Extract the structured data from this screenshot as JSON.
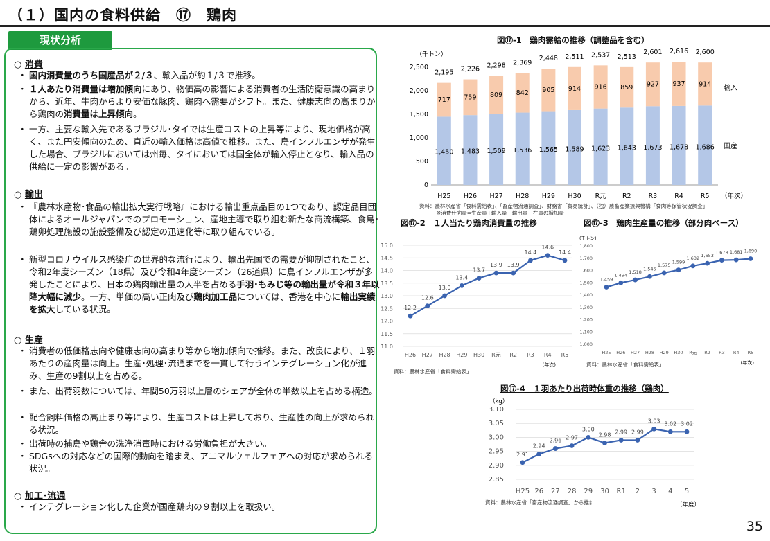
{
  "page": {
    "title": "（１）国内の食料供給　⑰　鶏肉",
    "status_tab": "現状分析",
    "page_number": "35"
  },
  "left": {
    "consumption": {
      "heading": "消費",
      "b1": {
        "pre": "",
        "bold": "国内消費量のうち国産品が２/３",
        "post": "、輸入品が約１/３で推移。"
      },
      "b2": {
        "bold1": "１人あたり消費量は増加傾向",
        "mid": "にあり、物価高の影響による消費者の生活防衛意識の高まりから、近年、牛肉からより安価な豚肉、鶏肉へ需要がシフト。また、健康志向の高まりから鶏肉の",
        "bold2": "消費量は上昇傾向",
        "post": "。"
      },
      "b3": "一方、主要な輸入先であるブラジル･タイでは生産コストの上昇等により、現地価格が高く、また円安傾向のため、直近の輸入価格は高値で推移。また、鳥インフルエンザが発生した場合、ブラジルにおいては州毎、タイにおいては国全体が輸入停止となり、輸入品の供給に一定の影響がある。"
    },
    "export": {
      "heading": "輸出",
      "b1": "『農林水産物･食品の輸出拡大実行戦略』における輸出重点品目の1つであり、認定品目団体によるオールジャパンでのプロモーション、産地主導で取り組む新たな商流構築、食鳥･鶏卵処理施設の施設整備及び認定の迅速化等に取り組んでいる。",
      "b2": {
        "pre": "新型コロナウイルス感染症の世界的な流行により、輸出先国での需要が抑制されたこと、令和2年度シーズン（18県）及び令和4年度シーズン（26道県）に鳥インフルエンザが多発したことにより、日本の鶏肉輸出量の大半を占める",
        "bold1": "手羽･もみじ等の輸出量が令和３年以降大幅に減少",
        "mid1": "。一方、単価の高い正肉及び",
        "bold2": "鶏肉加工品",
        "mid2": "については、香港を中心に",
        "bold3": "輸出実績を拡大",
        "post": "している状況。"
      }
    },
    "production": {
      "heading": "生産",
      "b1": "消費者の低価格志向や健康志向の高まり等から増加傾向で推移。また、改良により、１羽あたりの産肉量は向上。生産･処理･流通までを一貫して行うインテグレーション化が進み、生産の9割以上を占める。",
      "b2": "また、出荷羽数については、年間50万羽以上層のシェアが全体の半数以上を占める構造。",
      "b3": "配合飼料価格の高止まり等により、生産コストは上昇しており、生産性の向上が求められる状況。",
      "b4": "出荷時の捕鳥や鶏舎の洗浄消毒時における労働負担が大きい。",
      "b5": "SDGsへの対応などの国際的動向を踏まえ、アニマルウェルフェアへの対応が求められる状況。"
    },
    "processing": {
      "heading": "加工･流通",
      "b1": "インテグレーション化した企業が国産鶏肉の９割以上を取扱い。"
    }
  },
  "charts_text": {
    "c1_source": "資料：農林水産省「食料需給表」、「畜産物流通調査」、財務省「貿易統計」、（独）農畜産業振興機構「食肉等保管状況調査」",
    "c1_note": "※消費仕向量=生産量+輸入量－輸出量－在庫の増加量",
    "c2_source": "資料：農林水産省「食料需給表」",
    "c3_source": "資料：農林水産省「食料需給表」",
    "c4_source": "資料：農林水産省「畜産物流通調査」から推計"
  },
  "chart_data": [
    {
      "id": "c1",
      "type": "bar",
      "title": "図⑰-1　鶏肉需給の推移（調整品を含む）",
      "ylabel": "（千トン）",
      "xlabel_suffix": "（年次）",
      "categories": [
        "H25",
        "H26",
        "H27",
        "H28",
        "H29",
        "H30",
        "R元",
        "R2",
        "R3",
        "R4",
        "R5"
      ],
      "series": [
        {
          "name": "国産",
          "color": "#b4c7e7",
          "values": [
            1450,
            1483,
            1509,
            1536,
            1565,
            1589,
            1623,
            1643,
            1673,
            1678,
            1686
          ],
          "labels": [
            "1,450",
            "1,483",
            "1,509",
            "1,536",
            "1,565",
            "1,589",
            "1,623",
            "1,643",
            "1,673",
            "1,678",
            "1,686"
          ]
        },
        {
          "name": "輸入",
          "color": "#f8cbad",
          "values": [
            717,
            759,
            809,
            842,
            905,
            914,
            916,
            859,
            927,
            937,
            914
          ],
          "labels": [
            "717",
            "759",
            "809",
            "842",
            "905",
            "914",
            "916",
            "859",
            "927",
            "937",
            "914"
          ]
        }
      ],
      "totals": [
        "2,195",
        "2,226",
        "2,298",
        "2,369",
        "2,448",
        "2,511",
        "2,537",
        "2,513",
        "2,601",
        "2,616",
        "2,600"
      ],
      "yticks": [
        "0",
        "500",
        "1,000",
        "1,500",
        "2,000",
        "2,500"
      ],
      "ylim": [
        0,
        2500
      ]
    },
    {
      "id": "c2",
      "type": "line",
      "title": "図⑰-2　１人当たり鶏肉消費量の推移",
      "xlabel_suffix": "(年次)",
      "categories": [
        "H26",
        "H27",
        "H28",
        "H29",
        "H30",
        "R元",
        "R2",
        "R3",
        "R4",
        "R5"
      ],
      "values": [
        12.2,
        12.6,
        13.0,
        13.4,
        13.7,
        13.9,
        13.9,
        14.4,
        14.6,
        14.4
      ],
      "labels": [
        "12.2",
        "12.6",
        "13.0",
        "13.4",
        "13.7",
        "13.9",
        "13.9",
        "14.4",
        "14.6",
        "14.4"
      ],
      "yticks": [
        "11.0",
        "11.5",
        "12.0",
        "12.5",
        "13.0",
        "13.5",
        "14.0",
        "14.5",
        "15.0"
      ],
      "ylim": [
        11.0,
        15.0
      ],
      "color": "#3a63b0"
    },
    {
      "id": "c3",
      "type": "line",
      "title": "図⑰-3　鶏肉生産量の推移（部分肉ベース）",
      "ylabel": "(千トン)",
      "xlabel_suffix": "(年次)",
      "categories": [
        "H25",
        "H26",
        "H27",
        "H28",
        "H29",
        "H30",
        "R元",
        "R2",
        "R3",
        "R4",
        "R5"
      ],
      "values": [
        1459,
        1494,
        1518,
        1545,
        1575,
        1599,
        1632,
        1653,
        1678,
        1681,
        1690
      ],
      "labels": [
        "1,459",
        "1,494",
        "1,518",
        "1,545",
        "1,575",
        "1,599",
        "1,632",
        "1,653",
        "1,678",
        "1,681",
        "1,690"
      ],
      "yticks": [
        "1,000",
        "1,100",
        "1,200",
        "1,300",
        "1,400",
        "1,500",
        "1,600",
        "1,700",
        "1,800"
      ],
      "ylim": [
        1000,
        1800
      ],
      "color": "#3a63b0"
    },
    {
      "id": "c4",
      "type": "line",
      "title": "図⑰-4　１羽あたり出荷時体重の推移（鶏肉）",
      "ylabel": "（kg）",
      "xlabel_suffix": "（年度）",
      "categories": [
        "H25",
        "26",
        "27",
        "28",
        "29",
        "30",
        "R1",
        "2",
        "3",
        "4",
        "5"
      ],
      "values": [
        2.91,
        2.94,
        2.96,
        2.97,
        3.0,
        2.98,
        2.99,
        2.99,
        3.03,
        3.02,
        3.02
      ],
      "labels": [
        "2.91",
        "2.94",
        "2.96",
        "2.97",
        "3.00",
        "2.98",
        "2.99",
        "2.99",
        "3.03",
        "3.02",
        "3.02"
      ],
      "yticks": [
        "2.85",
        "2.90",
        "2.95",
        "3.00",
        "3.05",
        "3.10"
      ],
      "ylim": [
        2.85,
        3.1
      ],
      "color": "#3a63b0"
    }
  ]
}
